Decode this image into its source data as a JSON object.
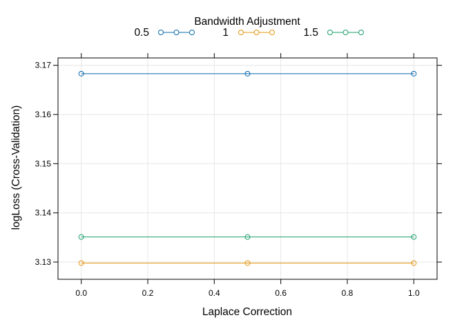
{
  "chart_data": {
    "type": "line",
    "xlabel": "Laplace Correction",
    "ylabel": "logLoss (Cross-Validation)",
    "legend_title": "Bandwidth Adjustment",
    "legend_placement": "top",
    "grid": true,
    "xlim": [
      -0.07,
      1.07
    ],
    "ylim": [
      3.1265,
      3.1715
    ],
    "x_ticks": [
      0.0,
      0.2,
      0.4,
      0.6,
      0.8,
      1.0
    ],
    "x_tick_labels": [
      "0.0",
      "0.2",
      "0.4",
      "0.6",
      "0.8",
      "1.0"
    ],
    "y_ticks": [
      3.13,
      3.14,
      3.15,
      3.16,
      3.17
    ],
    "y_tick_labels": [
      "3.13",
      "3.14",
      "3.15",
      "3.16",
      "3.17"
    ],
    "x": [
      0.0,
      0.5,
      1.0
    ],
    "series": [
      {
        "name": "0.5",
        "values": [
          3.1683,
          3.1683,
          3.1683
        ],
        "color": "#0868ac"
      },
      {
        "name": "1",
        "values": [
          3.1298,
          3.1298,
          3.1298
        ],
        "color": "#e6950c"
      },
      {
        "name": "1.5",
        "values": [
          3.1351,
          3.1351,
          3.1351
        ],
        "color": "#1a9e6a"
      }
    ]
  }
}
